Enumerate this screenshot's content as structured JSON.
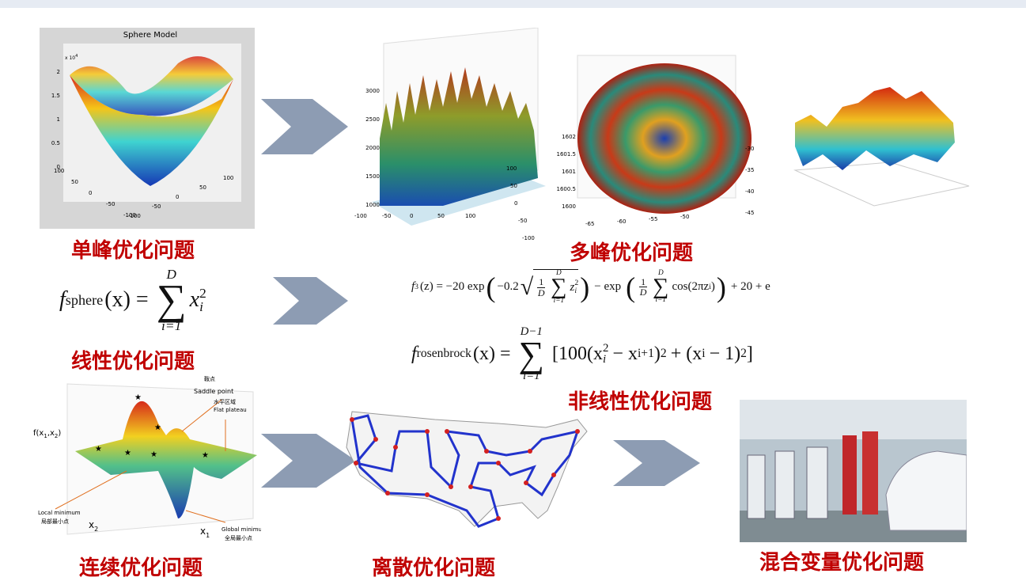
{
  "unimodal": {
    "label": "单峰优化问题",
    "figure_title": "Sphere Model",
    "exponent_base": "x 10",
    "exponent_power": "4",
    "z_ticks": [
      "2",
      "1.5",
      "1",
      "0.5",
      "0"
    ],
    "x_ticks": [
      "100",
      "50",
      "0",
      "-50",
      "-100"
    ],
    "y_ticks": [
      "-100",
      "-50",
      "0",
      "50",
      "100"
    ]
  },
  "multimodal": {
    "label": "多峰优化问题",
    "figure_a": {
      "z_ticks": [
        "3000",
        "2500",
        "2000",
        "1500",
        "1000"
      ],
      "x_ticks": [
        "-100",
        "-50",
        "0",
        "50",
        "100"
      ],
      "y_ticks": [
        "100",
        "50",
        "0",
        "-50",
        "-100"
      ]
    },
    "figure_b": {
      "z_ticks": [
        "1602",
        "1601.5",
        "1601",
        "1600.5",
        "1600"
      ],
      "x_ticks": [
        "-65",
        "-60",
        "-55",
        "-50"
      ],
      "y_ticks": [
        "-30",
        "-35",
        "-40",
        "-45"
      ]
    }
  },
  "linear": {
    "label": "线性优化问题",
    "formula": {
      "f": "f",
      "sub": "sphere",
      "arg": "(x) =",
      "sum_top": "D",
      "sum_bottom": "i=1",
      "term": "x",
      "term_sup": "2",
      "term_sub": "i"
    }
  },
  "nonlinear": {
    "label": "非线性优化问题",
    "ackley": {
      "head": "f",
      "head_sub": "3",
      "head_arg": "(z) = −20 exp",
      "coef": "−0.2",
      "frac1_num": "1",
      "frac1_den": "D",
      "sum1_top": "D",
      "sum1_bottom": "i=1",
      "z": "z",
      "z_sup": "2",
      "z_sub": "i",
      "mid": "− exp",
      "frac2_num": "1",
      "frac2_den": "D",
      "sum2_top": "D",
      "sum2_bottom": "i=1",
      "cos": "cos(2πz",
      "cos_sub": "i",
      "cos_end": ")",
      "tail": "+ 20 + e"
    },
    "rosenbrock": {
      "f": "f",
      "sub": "rosenbrock",
      "arg": "(x) =",
      "sum_top": "D−1",
      "sum_bottom": "i=1",
      "a": "[100(x",
      "a_sup": "2",
      "a_sub": "i",
      "b": "− x",
      "b_sub": "i+1",
      "c": ")",
      "c_sup": "2",
      "d": "+ (x",
      "d_sub": "i",
      "e": "− 1)",
      "e_sup": "2",
      "f_end": "]"
    }
  },
  "continuous": {
    "label": "连续优化问题",
    "saddle_cn": "鞍点",
    "saddle_en": "Saddle point",
    "plateau_cn": "水平区域",
    "plateau_en": "Flat plateau",
    "local_en": "Local minimum",
    "local_cn": "局部最小点",
    "global_en": "Global minimum",
    "global_cn": "全局最小点",
    "fx": "f(x",
    "fx_sub1": "1",
    "fx_mid": ",x",
    "fx_sub2": "2",
    "fx_end": ")",
    "x2": "x",
    "x2_sub": "2",
    "x1": "x",
    "x1_sub": "1"
  },
  "discrete": {
    "label": "离散优化问题"
  },
  "mixed": {
    "label": "混合变量优化问题"
  }
}
